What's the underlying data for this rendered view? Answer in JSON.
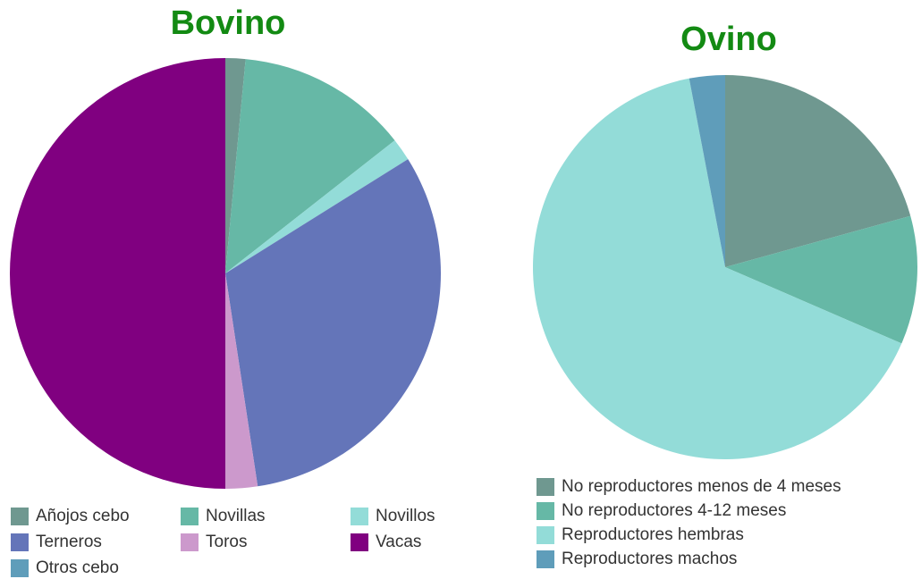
{
  "chart_data": [
    {
      "type": "pie",
      "title": "Bovino",
      "categories": [
        "Añojos cebo",
        "Novillas",
        "Novillos",
        "Terneros",
        "Toros",
        "Vacas",
        "Otros cebo"
      ],
      "values": [
        1.5,
        12.9,
        1.7,
        31.5,
        2.4,
        50,
        0
      ],
      "colors": [
        "#6f9890",
        "#66b8a6",
        "#93dcd8",
        "#6475b9",
        "#cc99cc",
        "#800080",
        "#5f9dba"
      ]
    },
    {
      "type": "pie",
      "title": "Ovino",
      "categories": [
        "No reproductores menos de 4 meses",
        "No reproductores 4-12 meses",
        "Reproductores hembras",
        "Reproductores machos"
      ],
      "values": [
        20.7,
        10.8,
        65.5,
        3
      ],
      "colors": [
        "#6f9890",
        "#66b8a6",
        "#93dcd8",
        "#5f9dba"
      ]
    }
  ]
}
